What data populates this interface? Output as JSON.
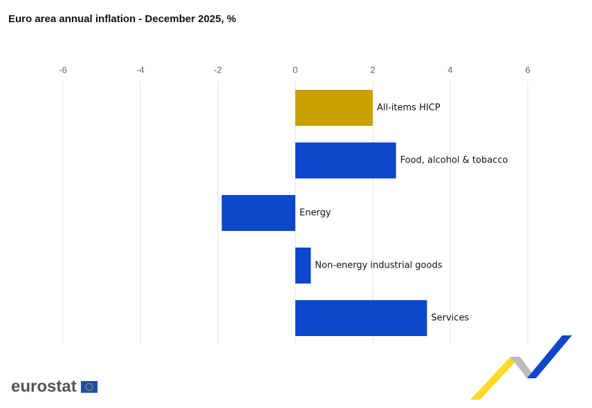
{
  "chart_data": {
    "type": "barh",
    "title": "Euro area annual inflation - December 2025, %",
    "categories": [
      "All-items HICP",
      "Food, alcohol & tobacco",
      "Energy",
      "Non-energy industrial goods",
      "Services"
    ],
    "values": [
      2.0,
      2.6,
      -1.9,
      0.4,
      3.4
    ],
    "colors": [
      "#c9a100",
      "#0e47cb",
      "#0e47cb",
      "#0e47cb",
      "#0e47cb"
    ],
    "xlim": [
      -6,
      6
    ],
    "xticks": [
      -6,
      -4,
      -2,
      0,
      2,
      4,
      6
    ],
    "grid": true
  },
  "logo": "eurostat"
}
